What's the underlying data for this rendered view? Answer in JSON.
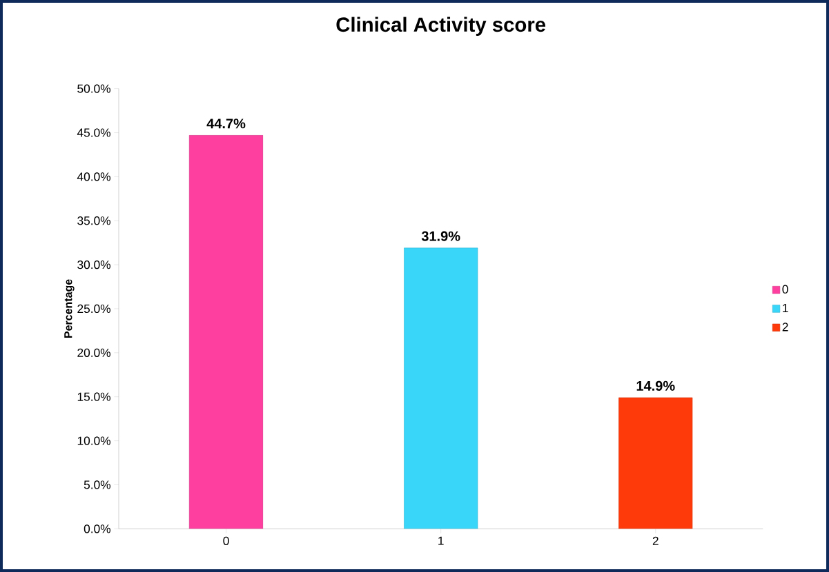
{
  "chart_data": {
    "type": "bar",
    "title": "Clinical Activity score",
    "ylabel": "Percentage",
    "categories": [
      "0",
      "1",
      "2"
    ],
    "series": [
      {
        "name": "0",
        "color": "#ff3fa0",
        "values": [
          44.7,
          null,
          null
        ],
        "value_labels": [
          "44.7%",
          null,
          null
        ]
      },
      {
        "name": "1",
        "color": "#3ad6fa",
        "values": [
          null,
          31.9,
          null
        ],
        "value_labels": [
          null,
          "31.9%",
          null
        ]
      },
      {
        "name": "2",
        "color": "#ff3a0a",
        "values": [
          null,
          null,
          14.9
        ],
        "value_labels": [
          null,
          null,
          "14.9%"
        ]
      }
    ],
    "ylim": [
      0,
      50
    ],
    "yticks": [
      {
        "value": 0,
        "label": "0.0%"
      },
      {
        "value": 5,
        "label": "5.0%"
      },
      {
        "value": 10,
        "label": "10.0%"
      },
      {
        "value": 15,
        "label": "15.0%"
      },
      {
        "value": 20,
        "label": "20.0%"
      },
      {
        "value": 25,
        "label": "25.0%"
      },
      {
        "value": 30,
        "label": "30.0%"
      },
      {
        "value": 35,
        "label": "35.0%"
      },
      {
        "value": 40,
        "label": "40.0%"
      },
      {
        "value": 45,
        "label": "45.0%"
      },
      {
        "value": 50,
        "label": "50.0%"
      }
    ],
    "grid": false,
    "legend": "right"
  }
}
